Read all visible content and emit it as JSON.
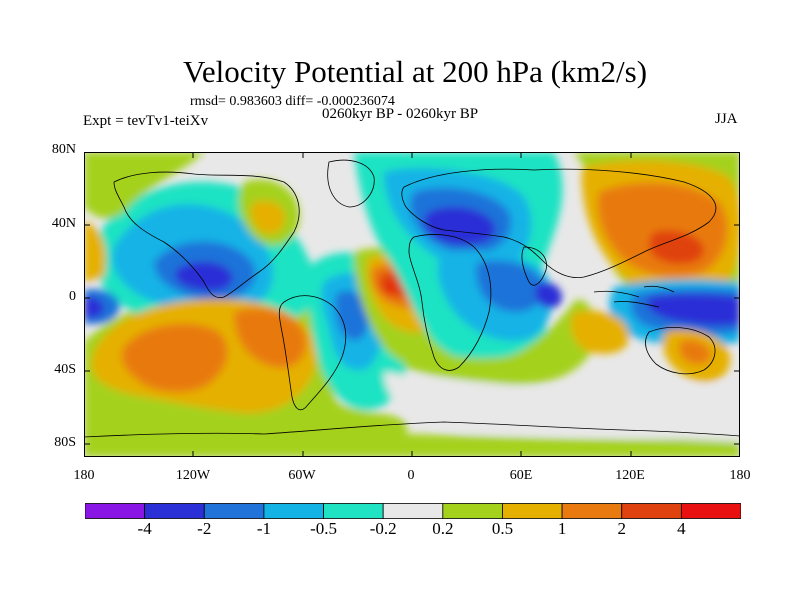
{
  "title": "Velocity Potential at 200 hPa (km2/s)",
  "stats_line": "rmsd= 0.983603 diff= -0.000236074",
  "experiment": "Expt = tevTv1-teiXv",
  "period": "0260kyr BP - 0260kyr BP",
  "season": "JJA",
  "axes": {
    "lat_ticks": [
      "80N",
      "40N",
      "0",
      "40S",
      "80S"
    ],
    "lon_ticks": [
      "180",
      "120W",
      "60W",
      "0",
      "60E",
      "120E",
      "180"
    ]
  },
  "colorbar": {
    "labels": [
      "-4",
      "-2",
      "-1",
      "-0.5",
      "-0.2",
      "0.2",
      "0.5",
      "1",
      "2",
      "4"
    ],
    "colors": [
      "#8a16e6",
      "#2b2fd6",
      "#1f73d9",
      "#13b3e6",
      "#1fe3c3",
      "#e8e8e8",
      "#a4d11c",
      "#e5b000",
      "#e87a10",
      "#e0420f",
      "#e81010"
    ]
  }
}
